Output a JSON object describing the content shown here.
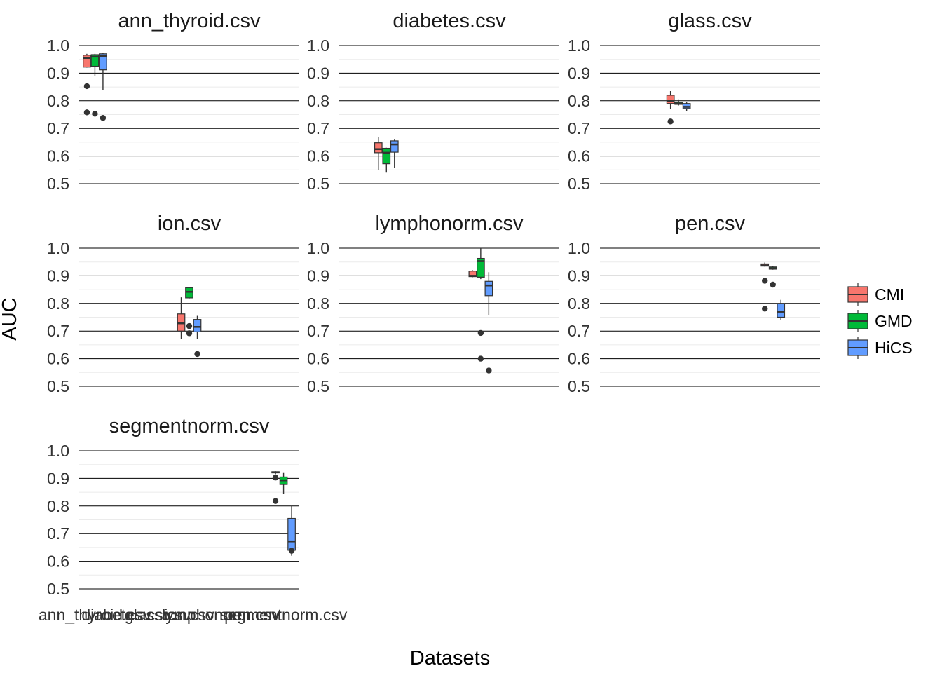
{
  "chart_data": {
    "type": "box",
    "xlabel": "Datasets",
    "ylabel": "AUC",
    "ylim": [
      0.5,
      1.0
    ],
    "yticks": [
      0.5,
      0.6,
      0.7,
      0.8,
      0.9,
      1.0
    ],
    "grid": true,
    "legend_position": "right",
    "x_categories": [
      "ann_thyroid.csv",
      "diabetes.csv",
      "glass.csv",
      "ion.csv",
      "lymphonorm.csv",
      "pen.csv",
      "segmentnorm.csv"
    ],
    "series": [
      {
        "name": "CMI",
        "color": "#F8766D"
      },
      {
        "name": "GMD",
        "color": "#00BA38"
      },
      {
        "name": "HiCS",
        "color": "#619CFF"
      }
    ],
    "panels": [
      {
        "title": "ann_thyroid.csv",
        "boxes": [
          {
            "series": "CMI",
            "min": 0.92,
            "q1": 0.922,
            "median": 0.955,
            "q3": 0.965,
            "max": 0.97,
            "outliers": [
              0.853,
              0.758
            ]
          },
          {
            "series": "GMD",
            "min": 0.89,
            "q1": 0.925,
            "median": 0.96,
            "q3": 0.967,
            "max": 0.97,
            "outliers": [
              0.753
            ]
          },
          {
            "series": "HiCS",
            "min": 0.84,
            "q1": 0.912,
            "median": 0.962,
            "q3": 0.97,
            "max": 0.973,
            "outliers": [
              0.738
            ]
          }
        ]
      },
      {
        "title": "diabetes.csv",
        "boxes": [
          {
            "series": "CMI",
            "min": 0.55,
            "q1": 0.612,
            "median": 0.625,
            "q3": 0.648,
            "max": 0.668,
            "outliers": []
          },
          {
            "series": "GMD",
            "min": 0.54,
            "q1": 0.572,
            "median": 0.612,
            "q3": 0.628,
            "max": 0.63,
            "outliers": []
          },
          {
            "series": "HiCS",
            "min": 0.558,
            "q1": 0.614,
            "median": 0.642,
            "q3": 0.655,
            "max": 0.662,
            "outliers": []
          }
        ]
      },
      {
        "title": "glass.csv",
        "boxes": [
          {
            "series": "CMI",
            "min": 0.77,
            "q1": 0.79,
            "median": 0.8,
            "q3": 0.82,
            "max": 0.835,
            "outliers": [
              0.725
            ]
          },
          {
            "series": "GMD",
            "min": 0.783,
            "q1": 0.787,
            "median": 0.79,
            "q3": 0.795,
            "max": 0.805,
            "outliers": []
          },
          {
            "series": "HiCS",
            "min": 0.762,
            "q1": 0.772,
            "median": 0.778,
            "q3": 0.79,
            "max": 0.797,
            "outliers": []
          }
        ]
      },
      {
        "title": "ion.csv",
        "boxes": [
          {
            "series": "CMI",
            "min": 0.672,
            "q1": 0.7,
            "median": 0.728,
            "q3": 0.762,
            "max": 0.822,
            "outliers": []
          },
          {
            "series": "GMD",
            "min": 0.818,
            "q1": 0.82,
            "median": 0.842,
            "q3": 0.857,
            "max": 0.86,
            "outliers": [
              0.718,
              0.692
            ]
          },
          {
            "series": "HiCS",
            "min": 0.672,
            "q1": 0.697,
            "median": 0.715,
            "q3": 0.742,
            "max": 0.755,
            "outliers": [
              0.617
            ]
          }
        ]
      },
      {
        "title": "lymphonorm.csv",
        "boxes": [
          {
            "series": "CMI",
            "min": 0.895,
            "q1": 0.897,
            "median": 0.9,
            "q3": 0.917,
            "max": 0.92,
            "outliers": []
          },
          {
            "series": "GMD",
            "min": 0.888,
            "q1": 0.895,
            "median": 0.953,
            "q3": 0.963,
            "max": 1.0,
            "outliers": [
              0.693,
              0.6
            ]
          },
          {
            "series": "HiCS",
            "min": 0.758,
            "q1": 0.828,
            "median": 0.865,
            "q3": 0.88,
            "max": 0.913,
            "outliers": [
              0.557
            ]
          }
        ]
      },
      {
        "title": "pen.csv",
        "boxes": [
          {
            "series": "CMI",
            "min": 0.933,
            "q1": 0.935,
            "median": 0.938,
            "q3": 0.943,
            "max": 0.948,
            "outliers": [
              0.882,
              0.781
            ]
          },
          {
            "series": "GMD",
            "min": 0.922,
            "q1": 0.924,
            "median": 0.927,
            "q3": 0.932,
            "max": 0.934,
            "outliers": [
              0.868
            ]
          },
          {
            "series": "HiCS",
            "min": 0.74,
            "q1": 0.75,
            "median": 0.77,
            "q3": 0.8,
            "max": 0.813,
            "outliers": []
          }
        ]
      },
      {
        "title": "segmentnorm.csv",
        "boxes": [
          {
            "series": "CMI",
            "min": 0.915,
            "q1": 0.92,
            "median": 0.922,
            "q3": 0.924,
            "max": 0.926,
            "outliers": [
              0.903,
              0.818
            ]
          },
          {
            "series": "GMD",
            "min": 0.845,
            "q1": 0.878,
            "median": 0.893,
            "q3": 0.905,
            "max": 0.922,
            "outliers": []
          },
          {
            "series": "HiCS",
            "min": 0.62,
            "q1": 0.64,
            "median": 0.672,
            "q3": 0.755,
            "max": 0.8,
            "outliers": [
              0.638
            ]
          }
        ]
      }
    ]
  }
}
